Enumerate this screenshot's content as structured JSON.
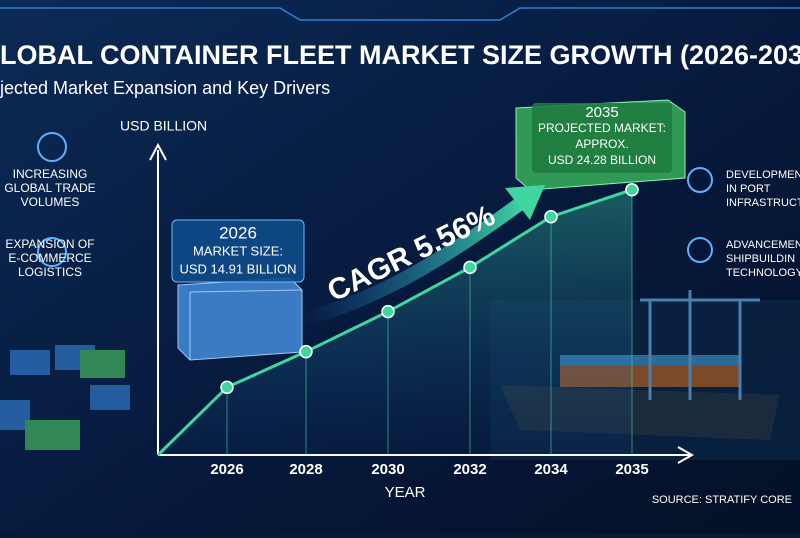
{
  "chart_data": {
    "type": "line",
    "title": "LOBAL CONTAINER FLEET MARKET SIZE GROWTH (2026-203",
    "subtitle": "jected Market Expansion and Key Drivers",
    "y_label": "USD BILLION",
    "x_label": "YEAR",
    "categories": [
      "2026",
      "2028",
      "2030",
      "2032",
      "2034",
      "2035"
    ],
    "values": [
      14.91,
      16.6,
      18.5,
      20.6,
      23.0,
      24.28
    ],
    "color": "#3fd6a0",
    "ylim": [
      11.7,
      26.4
    ],
    "callout_start": [
      "2026",
      "MARKET SIZE:",
      "USD 14.91 BILLION"
    ],
    "callout_end": [
      "2035",
      "PROJECTED MARKET:",
      "APPROX.",
      "USD 24.28 BILLION"
    ],
    "cagr": "CAGR 5.56%",
    "drivers_left": [
      [
        "INCREASING",
        "GLOBAL TRADE",
        "VOLUMES"
      ],
      [
        "EXPANSION OF",
        "E-COMMERCE",
        "LOGISTICS"
      ]
    ],
    "drivers_right": [
      [
        "DEVELOPMEN",
        "IN PORT",
        "INFRASTRUCTU"
      ],
      [
        "ADVANCEMEN",
        "SHIPBUILDIN",
        "TECHNOLOGY"
      ]
    ],
    "source": "SOURCE: STRATIFY CORE"
  }
}
